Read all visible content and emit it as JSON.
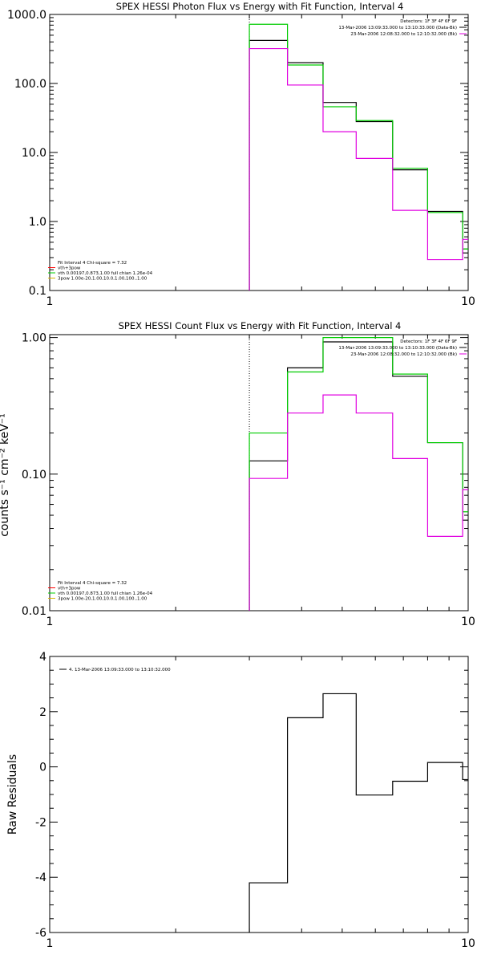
{
  "colors": {
    "black": "#000000",
    "magenta": "#e000e0",
    "green": "#00cc00",
    "gold": "#d8b400",
    "red": "#ff0000"
  },
  "panels": [
    {
      "title": "SPEX HESSI Photon Flux vs Energy with Fit Function, Interval 4",
      "ylabel": "",
      "x_scale": "log",
      "y_scale": "log",
      "xlim": [
        1,
        10
      ],
      "ylim": [
        0.1,
        1000
      ],
      "xticks": [
        {
          "v": 1,
          "label": "1"
        },
        {
          "v": 10,
          "label": "10"
        }
      ],
      "yticks": [
        {
          "v": 0.1,
          "label": "0.1"
        },
        {
          "v": 1,
          "label": "1.0"
        },
        {
          "v": 10,
          "label": "10.0"
        },
        {
          "v": 100,
          "label": "100.0"
        },
        {
          "v": 1000,
          "label": "1000.0"
        }
      ],
      "vline_x": 3.0,
      "legend_tr": [
        {
          "text": "Detectors: 1F 3F 4F 6F 9F",
          "color": ""
        },
        {
          "text": "13-Mar-2006 13:09:33.000 to 13:10:33.000 (Data-Bk)",
          "color": "black"
        },
        {
          "text": "23-Mar-2006 12:08:32.000 to 12:10:32.000 (Bk)",
          "color": "magenta"
        }
      ],
      "legend_bl": [
        {
          "text": "Fit Interval 4   Chi-square = 7.32",
          "color": ""
        },
        {
          "text": "vth+3pow",
          "color": "red"
        },
        {
          "text": "vth 0.00197,0.873,1.00   full chian 1.26e-04",
          "color": "green"
        },
        {
          "text": "3pow 1.00e-20,1.00,10.0,1.00,100.,1.00",
          "color": "gold"
        }
      ],
      "chart_data": {
        "type": "line",
        "bin_edges": [
          3.0,
          3.7,
          4.5,
          5.4,
          6.6,
          8.0,
          9.7,
          11.5
        ],
        "series": [
          {
            "name": "13-Mar-2006 13:09:33.000 to 13:10:33.000 (Data-Bk)",
            "color": "black",
            "values": [
              420,
              200,
              53,
              28,
              5.6,
              1.4,
              0.35
            ]
          },
          {
            "name": "vth 0.00197,0.873,1.00   full chian 1.26e-04",
            "color": "green",
            "values": [
              720,
              185,
              46,
              29,
              5.9,
              1.35,
              0.4
            ]
          },
          {
            "name": "23-Mar-2006 12:08:32.000 to 12:10:32.000 (Bk)",
            "color": "magenta",
            "values": [
              320,
              95,
              20,
              8.2,
              1.45,
              0.28,
              0.55
            ]
          }
        ]
      }
    },
    {
      "title": "SPEX HESSI Count Flux vs Energy with Fit Function, Interval 4",
      "ylabel": "counts s⁻¹ cm⁻² keV⁻¹",
      "x_scale": "log",
      "y_scale": "log",
      "xlim": [
        1,
        10
      ],
      "ylim": [
        0.01,
        1.05
      ],
      "xticks": [
        {
          "v": 1,
          "label": "1"
        },
        {
          "v": 10,
          "label": "10"
        }
      ],
      "yticks": [
        {
          "v": 0.01,
          "label": "0.01"
        },
        {
          "v": 0.1,
          "label": "0.10"
        },
        {
          "v": 1,
          "label": "1.00"
        }
      ],
      "vline_x": 3.0,
      "legend_tr": [
        {
          "text": "Detectors: 1F 3F 4F 6F 9F",
          "color": ""
        },
        {
          "text": "13-Mar-2006 13:09:33.000 to 13:10:33.000 (Data-Bk)",
          "color": "black"
        },
        {
          "text": "23-Mar-2006 12:08:32.000 to 12:10:32.000 (Bk)",
          "color": "magenta"
        }
      ],
      "legend_bl": [
        {
          "text": "Fit Interval 4   Chi-square = 7.32",
          "color": ""
        },
        {
          "text": "vth+3pow",
          "color": "red"
        },
        {
          "text": "vth 0.00197,0.873,1.00   full chian 1.26e-04",
          "color": "green"
        },
        {
          "text": "3pow 1.00e-20,1.00,10.0,1.00,100.,1.00",
          "color": "gold"
        }
      ],
      "chart_data": {
        "type": "line",
        "bin_edges": [
          3.0,
          3.7,
          4.5,
          5.4,
          6.6,
          8.0,
          9.7,
          11.5
        ],
        "series": [
          {
            "name": "13-Mar-2006 13:09:33.000 to 13:10:33.000 (Data-Bk)",
            "color": "black",
            "values": [
              0.125,
              0.6,
              0.93,
              0.93,
              0.52,
              0.17,
              0.046
            ]
          },
          {
            "name": "vth 0.00197,0.873,1.00   full chian 1.26e-04",
            "color": "green",
            "values": [
              0.2,
              0.56,
              1.0,
              1.0,
              0.54,
              0.17,
              0.053
            ]
          },
          {
            "name": "23-Mar-2006 12:08:32.000 to 12:10:32.000 (Bk)",
            "color": "magenta",
            "values": [
              0.093,
              0.28,
              0.38,
              0.28,
              0.13,
              0.035,
              0.077
            ]
          }
        ]
      }
    },
    {
      "title": "",
      "ylabel": "Raw Residuals",
      "x_scale": "log",
      "y_scale": "linear",
      "xlim": [
        1,
        10
      ],
      "ylim": [
        -6,
        4
      ],
      "xticks": [
        {
          "v": 1,
          "label": "1"
        },
        {
          "v": 10,
          "label": "10"
        }
      ],
      "yticks": [
        {
          "v": -6,
          "label": "-6"
        },
        {
          "v": -4,
          "label": "-4"
        },
        {
          "v": -2,
          "label": "-2"
        },
        {
          "v": 0,
          "label": "0"
        },
        {
          "v": 2,
          "label": "2"
        },
        {
          "v": 4,
          "label": "4"
        }
      ],
      "vline_x": null,
      "legend_tr": [],
      "legend_bl": [],
      "legend_tl": [
        {
          "text": "4. 13-Mar-2006 13:09:33.000 to 13:10:32.000",
          "color": "black"
        }
      ],
      "chart_data": {
        "type": "line",
        "bin_edges": [
          3.0,
          3.7,
          4.5,
          5.4,
          6.6,
          8.0,
          9.7,
          11.5
        ],
        "series": [
          {
            "name": "4. 13-Mar-2006 13:09:33.000 to 13:10:32.000",
            "color": "black",
            "values": [
              -4.2,
              1.78,
              2.65,
              -1.02,
              -0.52,
              0.16,
              -0.46
            ]
          }
        ]
      }
    }
  ]
}
